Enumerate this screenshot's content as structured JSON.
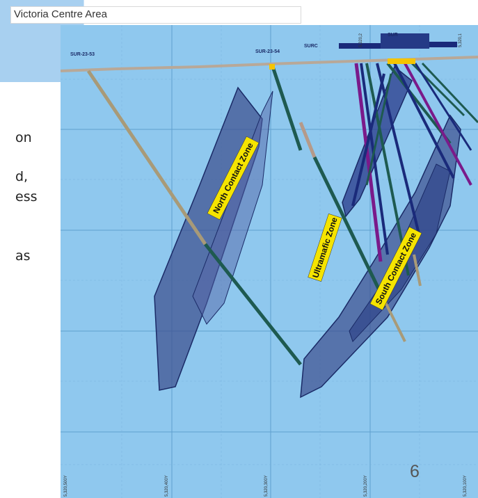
{
  "slide": {
    "title": "Victoria Centre Area",
    "page_number": "6",
    "text_fragments": [
      "on",
      "d,",
      "ess",
      "as"
    ]
  },
  "section": {
    "hole_labels": [
      "SUR-23-53",
      "SUR-23-54",
      "SURC",
      "SUR"
    ],
    "zones": [
      "North Contact Zone",
      "Ultramafic Zone",
      "South Contact Zone"
    ],
    "northing_labels": [
      "5,320,500Y",
      "5,320,400Y",
      "5,320,300Y",
      "5,320,200Y",
      "5,320,100Y"
    ],
    "top_labels": [
      "5,320,2",
      "5,320,1"
    ],
    "colors": {
      "background": "#8fc8ee",
      "grid": "#5f9fcf",
      "zone_fill": "#3d4f8f",
      "zone_label_bg": "#f5e400",
      "surface": "#b8a898"
    }
  }
}
